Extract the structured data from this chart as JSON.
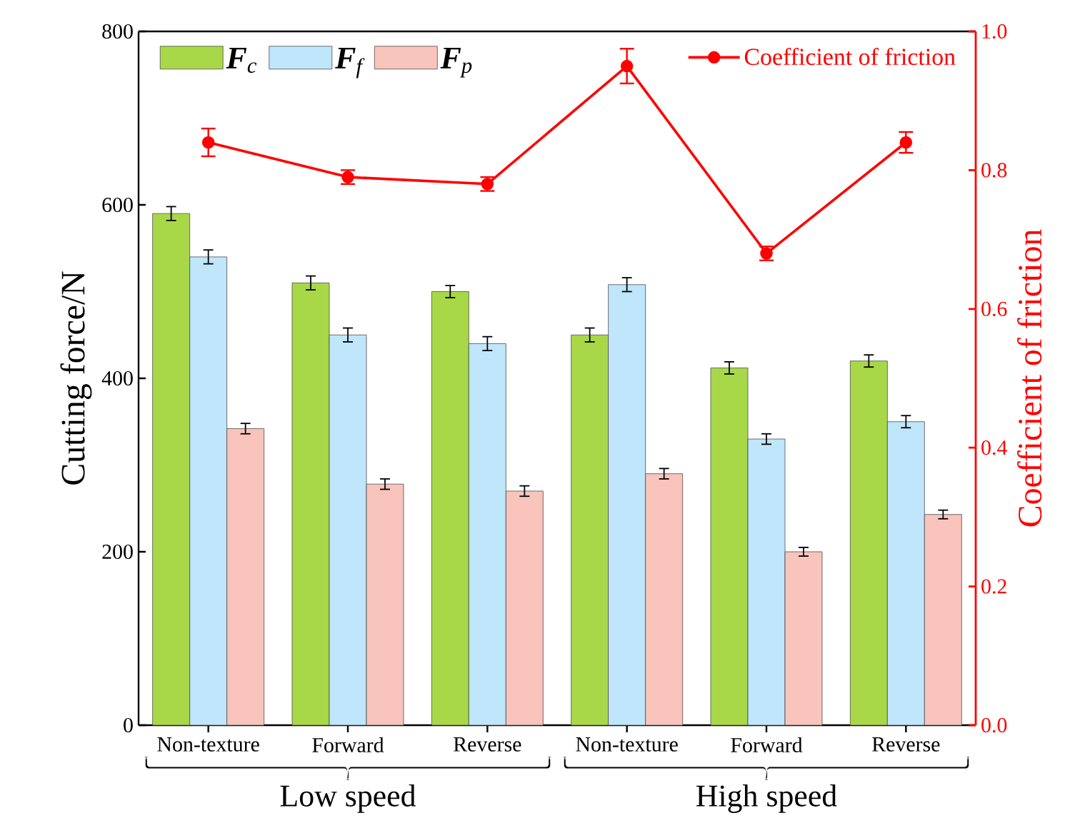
{
  "chart_data": {
    "type": "bar",
    "categories": [
      "Non-texture",
      "Forward",
      "Reverse",
      "Non-texture",
      "Forward",
      "Reverse"
    ],
    "ylabel": "Cutting force/N",
    "y2label": "Coefficient of friction",
    "ylim": [
      0,
      800
    ],
    "yticks": [
      0,
      200,
      400,
      600,
      800
    ],
    "y2lim": [
      0,
      1
    ],
    "y2ticks": [
      {
        "value": 0,
        "label": "0.0"
      },
      {
        "value": 0.2,
        "label": "0.2"
      },
      {
        "value": 0.4,
        "label": "0.4"
      },
      {
        "value": 0.6,
        "label": "0.6"
      },
      {
        "value": 0.8,
        "label": "0.8"
      },
      {
        "value": 1,
        "label": "1.0"
      }
    ],
    "legend": "top",
    "grid": false,
    "series": [
      {
        "name": "**F**$_{c}$",
        "color": "#a8d848",
        "values": [
          590,
          510,
          500,
          450,
          412,
          420
        ],
        "errors": [
          8,
          8,
          7,
          8,
          7,
          7
        ]
      },
      {
        "name": "**F**$_{f}$",
        "color": "#bfe6fb",
        "values": [
          540,
          450,
          440,
          508,
          330,
          350
        ],
        "errors": [
          8,
          8,
          8,
          8,
          6,
          7
        ]
      },
      {
        "name": "**F**$_{p}$",
        "color": "#f8c4bc",
        "values": [
          342,
          278,
          270,
          290,
          200,
          243
        ],
        "errors": [
          6,
          6,
          6,
          6,
          5,
          5
        ]
      },
      {
        "name": "Coefficient of friction",
        "type": "line",
        "axis": "y2",
        "color": "#ff0000",
        "marker": "circle",
        "line_style": "solid",
        "values": [
          0.84,
          0.79,
          0.78,
          0.95,
          0.68,
          0.84
        ],
        "errors": [
          0.02,
          0.01,
          0.01,
          0.025,
          0.01,
          0.015
        ]
      }
    ],
    "annotations": [
      "Low speed",
      "High speed"
    ]
  }
}
